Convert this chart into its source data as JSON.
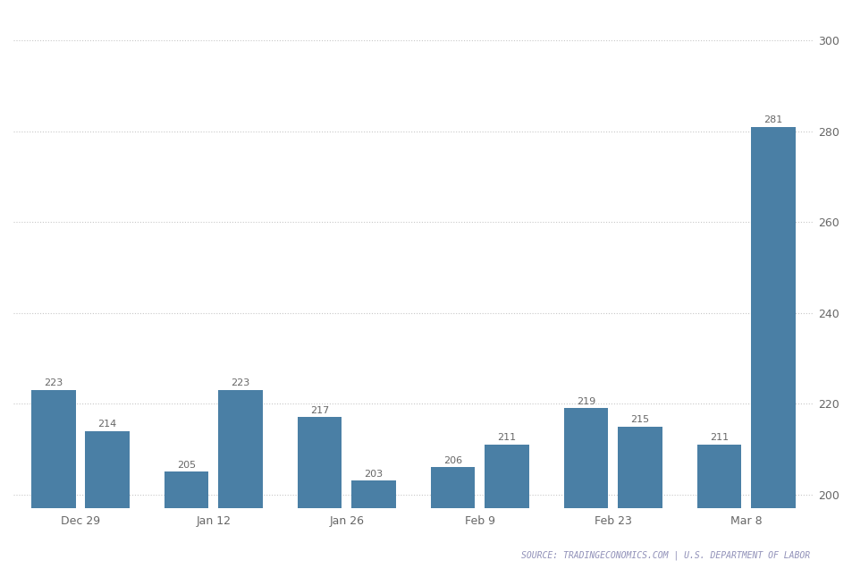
{
  "x_labels": [
    "Dec 29",
    "Jan 12",
    "Jan 26",
    "Feb 9",
    "Feb 23",
    "Mar 8"
  ],
  "values": [
    223,
    214,
    205,
    223,
    217,
    203,
    206,
    211,
    219,
    215,
    211,
    281
  ],
  "bar_color": "#4a7fa5",
  "background_color": "#ffffff",
  "grid_color": "#c8c8c8",
  "ylim": [
    197,
    306
  ],
  "yticks": [
    200,
    220,
    240,
    260,
    280,
    300
  ],
  "source_text": "SOURCE: TRADINGECONOMICS.COM | U.S. DEPARTMENT OF LABOR",
  "source_color": "#9090b8",
  "label_fontsize": 9,
  "bar_label_fontsize": 8,
  "source_fontsize": 7,
  "tick_label_color": "#666666",
  "bar_label_color": "#666666"
}
